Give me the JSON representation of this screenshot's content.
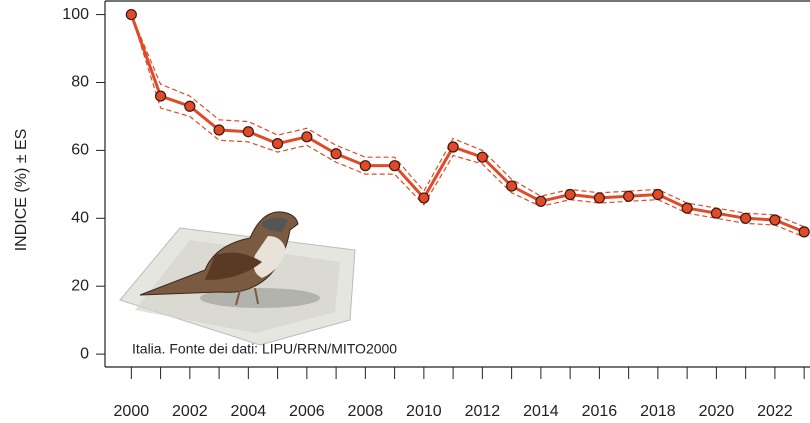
{
  "chart_data": {
    "type": "line",
    "y_label": "INDICE (%) ± ES",
    "annotation": "Italia. Fonte dei dati: LIPU/RRN/MITO2000",
    "x": [
      2000,
      2001,
      2002,
      2003,
      2004,
      2005,
      2006,
      2007,
      2008,
      2009,
      2010,
      2011,
      2012,
      2013,
      2014,
      2015,
      2016,
      2017,
      2018,
      2019,
      2020,
      2021,
      2022,
      2023
    ],
    "series": [
      {
        "color": "#e04a28",
        "values": [
          100,
          76,
          73,
          66,
          65.5,
          62,
          64,
          59,
          55.5,
          55.5,
          46,
          61,
          58,
          49.5,
          45,
          47,
          46,
          46.5,
          47,
          43,
          41.5,
          40,
          39.5,
          36
        ],
        "errors": [
          0,
          3.5,
          3,
          3,
          3,
          2.5,
          2.5,
          2.5,
          2.5,
          2.5,
          2,
          2.5,
          2,
          2,
          1.5,
          1.5,
          1.5,
          1.5,
          1.5,
          1.5,
          1.5,
          1.5,
          1.5,
          1.5
        ]
      }
    ],
    "xlim": [
      1999.1,
      2023.2
    ],
    "ylim": [
      -3.8,
      104
    ],
    "xticks": [
      2000,
      2002,
      2004,
      2006,
      2008,
      2010,
      2012,
      2014,
      2016,
      2018,
      2020,
      2022
    ],
    "xminor_ticks": [
      2001,
      2003,
      2005,
      2007,
      2009,
      2011,
      2013,
      2015,
      2017,
      2019,
      2021,
      2023
    ],
    "yticks": [
      0,
      20,
      40,
      60,
      80,
      100
    ]
  }
}
